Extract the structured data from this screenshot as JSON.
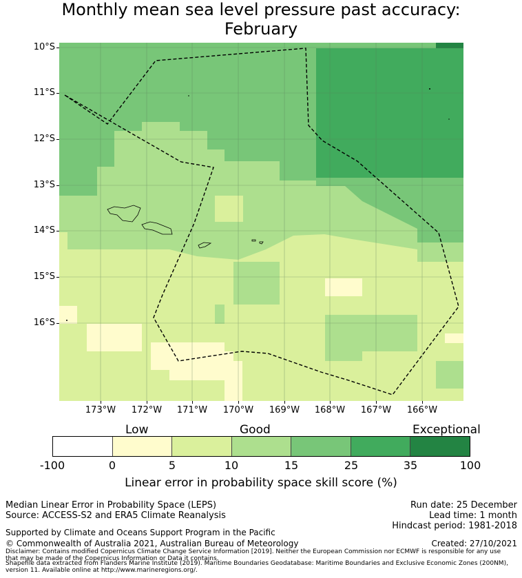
{
  "title": {
    "line1": "Monthly mean sea level pressure past accuracy:",
    "line2": "February"
  },
  "map": {
    "lat_labels": [
      "10°S",
      "11°S",
      "12°S",
      "13°S",
      "14°S",
      "15°S",
      "16°S"
    ],
    "lon_labels": [
      "173°W",
      "172°W",
      "171°W",
      "170°W",
      "169°W",
      "168°W",
      "167°W",
      "166°W"
    ],
    "region": "Samoa",
    "boundary_style": "dashed"
  },
  "colorbar": {
    "categories": [
      "Low",
      "Good",
      "Exceptional"
    ],
    "ticks": [
      "-100",
      "0",
      "5",
      "10",
      "15",
      "25",
      "35",
      "100"
    ],
    "colors": [
      "#ffffff",
      "#fffccd",
      "#daf09c",
      "#addf8e",
      "#78c678",
      "#41ab5d",
      "#238443"
    ],
    "label": "Linear error in probability space skill score (%)"
  },
  "footer": {
    "method": "Median Linear Error in Probability Space (LEPS)",
    "source": "Source: ACCESS-S2 and ERA5 Climate Reanalysis",
    "support": "Supported by Climate and Oceans Support Program in the Pacific",
    "copyright": "© Commonwealth of Australia 2021, Australian Bureau of Meteorology",
    "run_date": "Run date: 25 December",
    "lead_time": "Lead time: 1 month",
    "hindcast": "Hindcast period: 1981-2018",
    "created": "Created: 27/10/2021",
    "disclaimer1": "Disclaimer: Contains modified Copernicus Climate Change Service Information [2019]. Neither the European Commission nor ECMWF is responsible for any use",
    "disclaimer2": "that may be made of the Copernicus Information or Data it contains.",
    "disclaimer3": "Shapefile data extracted from Flanders Marine Institute (2019). Maritime Boundaries Geodatabase: Maritime Boundaries and Exclusive Economic Zones (200NM),",
    "disclaimer4": "version 11. Available online at http://www.marineregions.org/."
  }
}
